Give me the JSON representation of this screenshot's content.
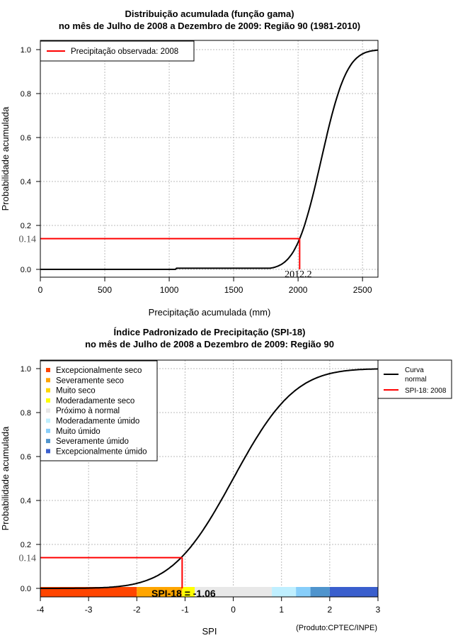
{
  "chart_data": [
    {
      "type": "line",
      "title": [
        "Distribuição acumulada (função gama)",
        "no mês de Julho de 2008 a Dezembro de 2009: Região 90 (1981-2010)"
      ],
      "xlabel": "Precipitação acumulada (mm)",
      "ylabel": "Probabilidade acumulada",
      "xlim": [
        0,
        2620
      ],
      "ylim": [
        0,
        1
      ],
      "xticks": [
        "0",
        "500",
        "1000",
        "1500",
        "2000",
        "2500"
      ],
      "yticks": [
        "0.0",
        "0.2",
        "0.4",
        "0.6",
        "0.8",
        "1.0"
      ],
      "grid": true,
      "legend": {
        "position": "top-left",
        "entries": [
          "Precipitação observada: 2008"
        ],
        "colors": [
          "#ff0000"
        ]
      },
      "curve": {
        "name": "gamma CDF",
        "mean": 2180,
        "sd": 155,
        "color": "#000000"
      },
      "observed": {
        "x": 2012.2,
        "y": 0.14,
        "x_label": "2012.2",
        "y_label": "0.14",
        "color": "#ff0000"
      }
    },
    {
      "type": "line",
      "title": [
        "Índice Padronizado de Precipitação (SPI-18)",
        "no mês de Julho de 2008 a Dezembro de 2009: Região 90"
      ],
      "xlabel": "SPI",
      "ylabel": "Probabilidade acumulada",
      "xlim": [
        -4,
        3
      ],
      "ylim": [
        0,
        1
      ],
      "xticks": [
        "-4",
        "-3",
        "-2",
        "-1",
        "0",
        "1",
        "2",
        "3"
      ],
      "yticks": [
        "0.0",
        "0.2",
        "0.4",
        "0.6",
        "0.8",
        "1.0"
      ],
      "grid": true,
      "legend_categories": {
        "position": "top-left",
        "entries": [
          {
            "label": "Excepcionalmente seco",
            "color": "#ff4500"
          },
          {
            "label": "Severamente seco",
            "color": "#ffa500"
          },
          {
            "label": "Muito seco",
            "color": "#ffd700"
          },
          {
            "label": "Moderadamente seco",
            "color": "#ffff00"
          },
          {
            "label": "Próximo à normal",
            "color": "#e8e8e8"
          },
          {
            "label": "Moderadamente úmido",
            "color": "#bfefff"
          },
          {
            "label": "Muito úmido",
            "color": "#87cefa"
          },
          {
            "label": "Severamente úmido",
            "color": "#4f94cd"
          },
          {
            "label": "Excepcionalmente úmido",
            "color": "#3a5fcd"
          }
        ]
      },
      "legend_lines": {
        "position": "top-right",
        "entries": [
          {
            "label": [
              "Curva",
              "normal"
            ],
            "color": "#000000"
          },
          {
            "label": [
              "SPI-18: 2008"
            ],
            "color": "#ff0000"
          }
        ]
      },
      "bands": [
        {
          "from": -4,
          "to": -2,
          "color": "#ff4500"
        },
        {
          "from": -2,
          "to": -1.06,
          "color": "#ffa500"
        },
        {
          "from": -1.06,
          "to": -0.8,
          "color": "#ffff00"
        },
        {
          "from": -0.8,
          "to": 0.8,
          "color": "#e8e8e8"
        },
        {
          "from": 0.8,
          "to": 1.3,
          "color": "#bfefff"
        },
        {
          "from": 1.3,
          "to": 1.6,
          "color": "#87cefa"
        },
        {
          "from": 1.6,
          "to": 2,
          "color": "#4f94cd"
        },
        {
          "from": 2,
          "to": 3,
          "color": "#3a5fcd"
        }
      ],
      "observed": {
        "x": -1.06,
        "y": 0.14,
        "y_label": "0.14",
        "annotation": "SPI-18 = -1.06",
        "color": "#ff0000"
      },
      "credit": "(Produto:CPTEC/INPE)"
    }
  ]
}
